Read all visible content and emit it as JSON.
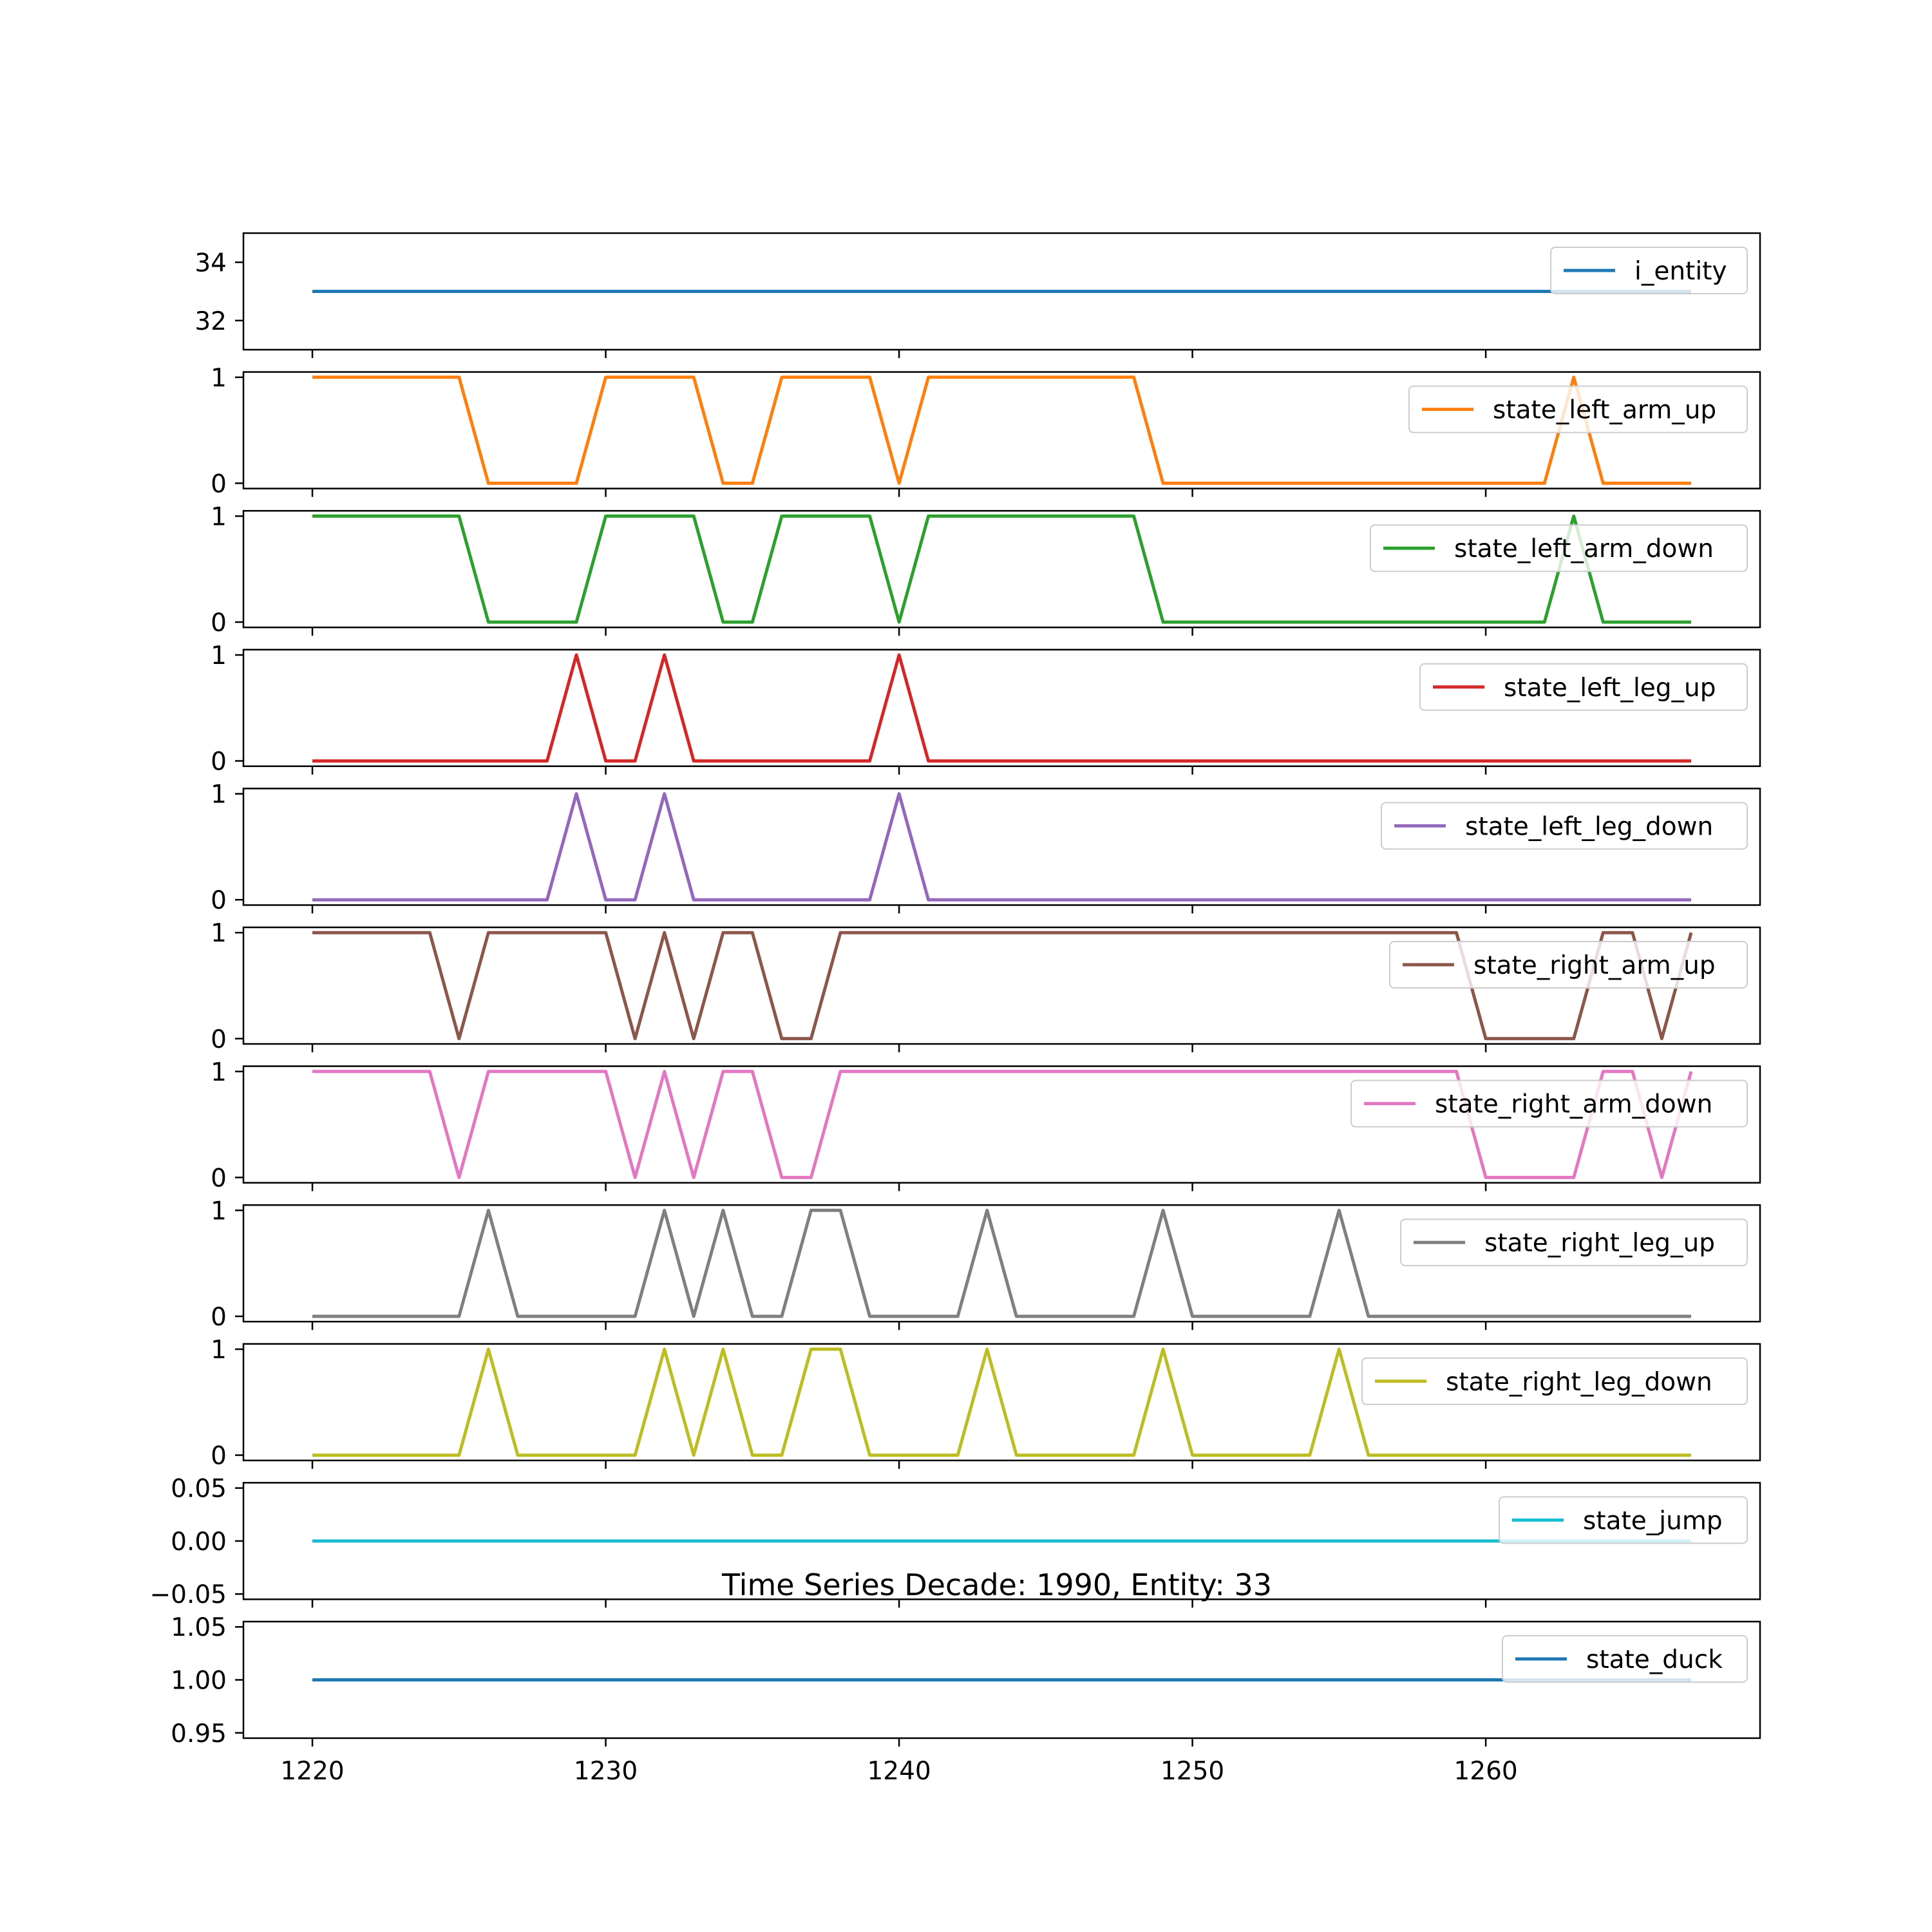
{
  "chart_data": {
    "type": "line",
    "title": "Time Series Decade: 1990, Entity: 33",
    "xlabel": "",
    "x_start": 1220,
    "x_end": 1267,
    "xlim": [
      1217.65,
      1269.35
    ],
    "x_ticks": [
      1220,
      1230,
      1240,
      1250,
      1260
    ],
    "x_tick_labels": [
      "1220",
      "1230",
      "1240",
      "1250",
      "1260"
    ],
    "legend_placement": "upper right",
    "grid": false,
    "panels": [
      {
        "name": "i_entity",
        "color": "#1f77b4",
        "ylim": [
          31,
          35
        ],
        "y_ticks": [
          32,
          34
        ],
        "y_tick_labels": [
          "32",
          "34"
        ],
        "values": [
          33,
          33,
          33,
          33,
          33,
          33,
          33,
          33,
          33,
          33,
          33,
          33,
          33,
          33,
          33,
          33,
          33,
          33,
          33,
          33,
          33,
          33,
          33,
          33,
          33,
          33,
          33,
          33,
          33,
          33,
          33,
          33,
          33,
          33,
          33,
          33,
          33,
          33,
          33,
          33,
          33,
          33,
          33,
          33,
          33,
          33,
          33,
          33
        ]
      },
      {
        "name": "state_left_arm_up",
        "color": "#ff7f0e",
        "ylim": [
          -0.05,
          1.05
        ],
        "y_ticks": [
          0,
          1
        ],
        "y_tick_labels": [
          "0",
          "1"
        ],
        "values": [
          1,
          1,
          1,
          1,
          1,
          1,
          0,
          0,
          0,
          0,
          1,
          1,
          1,
          1,
          0,
          0,
          1,
          1,
          1,
          1,
          0,
          1,
          1,
          1,
          1,
          1,
          1,
          1,
          1,
          0,
          0,
          0,
          0,
          0,
          0,
          0,
          0,
          0,
          0,
          0,
          0,
          0,
          0,
          1,
          0,
          0,
          0,
          0
        ]
      },
      {
        "name": "state_left_arm_down",
        "color": "#2ca02c",
        "ylim": [
          -0.05,
          1.05
        ],
        "y_ticks": [
          0,
          1
        ],
        "y_tick_labels": [
          "0",
          "1"
        ],
        "values": [
          1,
          1,
          1,
          1,
          1,
          1,
          0,
          0,
          0,
          0,
          1,
          1,
          1,
          1,
          0,
          0,
          1,
          1,
          1,
          1,
          0,
          1,
          1,
          1,
          1,
          1,
          1,
          1,
          1,
          0,
          0,
          0,
          0,
          0,
          0,
          0,
          0,
          0,
          0,
          0,
          0,
          0,
          0,
          1,
          0,
          0,
          0,
          0
        ]
      },
      {
        "name": "state_left_leg_up",
        "color": "#d62728",
        "ylim": [
          -0.05,
          1.05
        ],
        "y_ticks": [
          0,
          1
        ],
        "y_tick_labels": [
          "0",
          "1"
        ],
        "values": [
          0,
          0,
          0,
          0,
          0,
          0,
          0,
          0,
          0,
          1,
          0,
          0,
          1,
          0,
          0,
          0,
          0,
          0,
          0,
          0,
          1,
          0,
          0,
          0,
          0,
          0,
          0,
          0,
          0,
          0,
          0,
          0,
          0,
          0,
          0,
          0,
          0,
          0,
          0,
          0,
          0,
          0,
          0,
          0,
          0,
          0,
          0,
          0
        ]
      },
      {
        "name": "state_left_leg_down",
        "color": "#9467bd",
        "ylim": [
          -0.05,
          1.05
        ],
        "y_ticks": [
          0,
          1
        ],
        "y_tick_labels": [
          "0",
          "1"
        ],
        "values": [
          0,
          0,
          0,
          0,
          0,
          0,
          0,
          0,
          0,
          1,
          0,
          0,
          1,
          0,
          0,
          0,
          0,
          0,
          0,
          0,
          1,
          0,
          0,
          0,
          0,
          0,
          0,
          0,
          0,
          0,
          0,
          0,
          0,
          0,
          0,
          0,
          0,
          0,
          0,
          0,
          0,
          0,
          0,
          0,
          0,
          0,
          0,
          0
        ]
      },
      {
        "name": "state_right_arm_up",
        "color": "#8c564b",
        "ylim": [
          -0.05,
          1.05
        ],
        "y_ticks": [
          0,
          1
        ],
        "y_tick_labels": [
          "0",
          "1"
        ],
        "values": [
          1,
          1,
          1,
          1,
          1,
          0,
          1,
          1,
          1,
          1,
          1,
          0,
          1,
          0,
          1,
          1,
          0,
          0,
          1,
          1,
          1,
          1,
          1,
          1,
          1,
          1,
          1,
          1,
          1,
          1,
          1,
          1,
          1,
          1,
          1,
          1,
          1,
          1,
          1,
          1,
          0,
          0,
          0,
          0,
          1,
          1,
          0,
          1
        ]
      },
      {
        "name": "state_right_arm_down",
        "color": "#e377c2",
        "ylim": [
          -0.05,
          1.05
        ],
        "y_ticks": [
          0,
          1
        ],
        "y_tick_labels": [
          "0",
          "1"
        ],
        "values": [
          1,
          1,
          1,
          1,
          1,
          0,
          1,
          1,
          1,
          1,
          1,
          0,
          1,
          0,
          1,
          1,
          0,
          0,
          1,
          1,
          1,
          1,
          1,
          1,
          1,
          1,
          1,
          1,
          1,
          1,
          1,
          1,
          1,
          1,
          1,
          1,
          1,
          1,
          1,
          1,
          0,
          0,
          0,
          0,
          1,
          1,
          0,
          1
        ]
      },
      {
        "name": "state_right_leg_up",
        "color": "#7f7f7f",
        "ylim": [
          -0.05,
          1.05
        ],
        "y_ticks": [
          0,
          1
        ],
        "y_tick_labels": [
          "0",
          "1"
        ],
        "values": [
          0,
          0,
          0,
          0,
          0,
          0,
          1,
          0,
          0,
          0,
          0,
          0,
          1,
          0,
          1,
          0,
          0,
          1,
          1,
          0,
          0,
          0,
          0,
          1,
          0,
          0,
          0,
          0,
          0,
          1,
          0,
          0,
          0,
          0,
          0,
          1,
          0,
          0,
          0,
          0,
          0,
          0,
          0,
          0,
          0,
          0,
          0,
          0
        ]
      },
      {
        "name": "state_right_leg_down",
        "color": "#bcbd22",
        "ylim": [
          -0.05,
          1.05
        ],
        "y_ticks": [
          0,
          1
        ],
        "y_tick_labels": [
          "0",
          "1"
        ],
        "values": [
          0,
          0,
          0,
          0,
          0,
          0,
          1,
          0,
          0,
          0,
          0,
          0,
          1,
          0,
          1,
          0,
          0,
          1,
          1,
          0,
          0,
          0,
          0,
          1,
          0,
          0,
          0,
          0,
          0,
          1,
          0,
          0,
          0,
          0,
          0,
          1,
          0,
          0,
          0,
          0,
          0,
          0,
          0,
          0,
          0,
          0,
          0,
          0
        ]
      },
      {
        "name": "state_jump",
        "color": "#17becf",
        "ylim": [
          -0.055,
          0.055
        ],
        "y_ticks": [
          -0.05,
          0.0,
          0.05
        ],
        "y_tick_labels": [
          "−0.05",
          "0.00",
          "0.05"
        ],
        "values": [
          0,
          0,
          0,
          0,
          0,
          0,
          0,
          0,
          0,
          0,
          0,
          0,
          0,
          0,
          0,
          0,
          0,
          0,
          0,
          0,
          0,
          0,
          0,
          0,
          0,
          0,
          0,
          0,
          0,
          0,
          0,
          0,
          0,
          0,
          0,
          0,
          0,
          0,
          0,
          0,
          0,
          0,
          0,
          0,
          0,
          0,
          0,
          0
        ]
      },
      {
        "name": "state_duck",
        "color": "#1f77b4",
        "ylim": [
          0.945,
          1.055
        ],
        "y_ticks": [
          0.95,
          1.0,
          1.05
        ],
        "y_tick_labels": [
          "0.95",
          "1.00",
          "1.05"
        ],
        "values": [
          1,
          1,
          1,
          1,
          1,
          1,
          1,
          1,
          1,
          1,
          1,
          1,
          1,
          1,
          1,
          1,
          1,
          1,
          1,
          1,
          1,
          1,
          1,
          1,
          1,
          1,
          1,
          1,
          1,
          1,
          1,
          1,
          1,
          1,
          1,
          1,
          1,
          1,
          1,
          1,
          1,
          1,
          1,
          1,
          1,
          1,
          1,
          1
        ]
      }
    ]
  }
}
